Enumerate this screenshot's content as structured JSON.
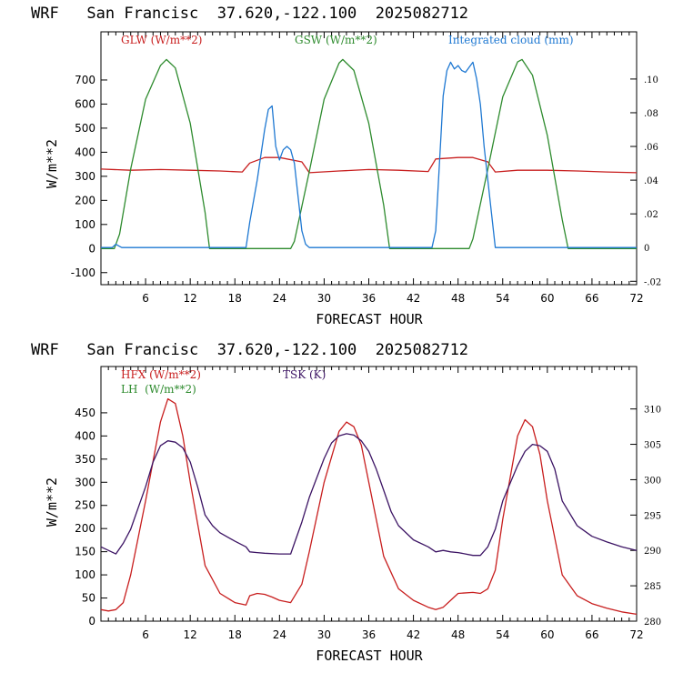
{
  "colors": {
    "red": "#c81e1e",
    "green": "#2e8b2e",
    "blue": "#1e78d2",
    "purple": "#3c1464"
  },
  "chart_data": [
    {
      "type": "line",
      "title": "WRF   San Francisc  37.620,-122.100  2025082712",
      "xlabel": "FORECAST HOUR",
      "ylabel": "W/m**2",
      "xlim": [
        0,
        72
      ],
      "ylim": [
        -150,
        900
      ],
      "y2lim": [
        -0.022,
        0.128
      ],
      "x_ticks": [
        6,
        12,
        18,
        24,
        30,
        36,
        42,
        48,
        54,
        60,
        66,
        72
      ],
      "y_ticks": [
        -100,
        0,
        100,
        200,
        300,
        400,
        500,
        600,
        700
      ],
      "y_tick_labels": [
        "-100",
        "0",
        "100",
        "200",
        "300",
        "400",
        "500",
        "600",
        "700"
      ],
      "y2_ticks": [
        -0.02,
        0,
        0.02,
        0.04,
        0.06,
        0.08,
        0.1
      ],
      "y2_tick_labels": [
        "-.02",
        "0",
        ".02",
        ".04",
        ".06",
        ".08",
        ".10"
      ],
      "series": [
        {
          "name": "GLW (W/m**2)",
          "color": "#c81e1e",
          "axis": "left",
          "x": [
            0,
            4,
            8,
            12,
            16,
            19,
            20,
            22,
            24,
            27,
            28,
            32,
            36,
            40,
            44,
            45,
            48,
            50,
            52,
            53,
            56,
            60,
            64,
            68,
            72
          ],
          "y": [
            330,
            325,
            328,
            325,
            322,
            318,
            355,
            378,
            378,
            360,
            315,
            322,
            328,
            325,
            320,
            372,
            378,
            378,
            360,
            318,
            325,
            325,
            322,
            318,
            315
          ]
        },
        {
          "name": "GSW (W/m**2)",
          "color": "#2e8b2e",
          "axis": "left",
          "x": [
            0,
            1.8,
            2.5,
            4,
            6,
            8,
            8.8,
            10,
            12,
            14,
            14.6,
            24,
            25.5,
            26,
            28,
            30,
            32,
            32.5,
            34,
            36,
            38,
            38.8,
            48,
            49.5,
            50,
            52,
            54,
            56,
            56.6,
            58,
            60,
            62,
            62.8,
            72
          ],
          "y": [
            0,
            0,
            60,
            330,
            620,
            760,
            785,
            750,
            520,
            150,
            0,
            0,
            0,
            30,
            320,
            620,
            770,
            785,
            740,
            520,
            180,
            0,
            0,
            0,
            40,
            330,
            630,
            775,
            785,
            720,
            470,
            120,
            0,
            0
          ]
        },
        {
          "name": "Integrated cloud (mm)",
          "color": "#1e78d2",
          "axis": "right",
          "x": [
            0,
            1.5,
            2,
            2.4,
            2.8,
            19.5,
            20,
            21,
            22,
            22.5,
            23,
            23.5,
            24,
            24.5,
            25,
            25.5,
            26,
            26.5,
            27,
            27.5,
            28,
            44.5,
            45,
            45.5,
            46,
            46.5,
            47,
            47.5,
            48,
            48.5,
            49,
            49.5,
            50,
            50.5,
            51,
            51.5,
            52,
            52.5,
            53,
            72
          ],
          "y": [
            0,
            0,
            0.002,
            0.001,
            0,
            0,
            0.015,
            0.04,
            0.07,
            0.082,
            0.084,
            0.06,
            0.052,
            0.058,
            0.06,
            0.058,
            0.05,
            0.03,
            0.01,
            0.002,
            0,
            0,
            0.01,
            0.05,
            0.09,
            0.105,
            0.11,
            0.106,
            0.108,
            0.105,
            0.104,
            0.107,
            0.11,
            0.1,
            0.085,
            0.06,
            0.04,
            0.02,
            0,
            0
          ]
        }
      ]
    },
    {
      "type": "line",
      "title": "WRF   San Francisc  37.620,-122.100  2025082712",
      "xlabel": "FORECAST HOUR",
      "ylabel": "W/m**2",
      "xlim": [
        0,
        72
      ],
      "ylim": [
        0,
        550
      ],
      "y2lim": [
        280,
        316
      ],
      "x_ticks": [
        6,
        12,
        18,
        24,
        30,
        36,
        42,
        48,
        54,
        60,
        66,
        72
      ],
      "y_ticks": [
        0,
        50,
        100,
        150,
        200,
        250,
        300,
        350,
        400,
        450
      ],
      "y_tick_labels": [
        "0",
        "50",
        "100",
        "150",
        "200",
        "250",
        "300",
        "350",
        "400",
        "450"
      ],
      "y2_ticks": [
        280,
        285,
        290,
        295,
        300,
        305,
        310
      ],
      "y2_tick_labels": [
        "280",
        "285",
        "290",
        "295",
        "300",
        "305",
        "310"
      ],
      "legend_lines": [
        {
          "text": "HFX (W/m**2)",
          "color": "#c81e1e"
        },
        {
          "text": "LH  (W/m**2)",
          "color": "#2e8b2e"
        },
        {
          "text": "TSK (K)",
          "color": "#3c1464"
        }
      ],
      "series": [
        {
          "name": "HFX (W/m**2)",
          "color": "#c81e1e",
          "axis": "left",
          "x": [
            0,
            1,
            2,
            3,
            4,
            6,
            8,
            9,
            10,
            11,
            12,
            14,
            16,
            18,
            19.5,
            20,
            21,
            22,
            23,
            24,
            25.5,
            27,
            28,
            30,
            32,
            33,
            34,
            35,
            36,
            38,
            40,
            42,
            44,
            45,
            46,
            47,
            48,
            50,
            51,
            52,
            53,
            54,
            56,
            57,
            58,
            59,
            60,
            62,
            64,
            66,
            68,
            70,
            72
          ],
          "y": [
            25,
            22,
            25,
            40,
            100,
            260,
            430,
            480,
            470,
            400,
            300,
            120,
            60,
            40,
            35,
            55,
            60,
            58,
            52,
            45,
            40,
            80,
            150,
            300,
            410,
            430,
            420,
            380,
            300,
            140,
            70,
            45,
            30,
            25,
            30,
            45,
            60,
            62,
            60,
            70,
            110,
            220,
            400,
            435,
            420,
            360,
            260,
            100,
            55,
            38,
            28,
            20,
            15
          ]
        },
        {
          "name": "TSK (K)",
          "color": "#3c1464",
          "axis": "right",
          "x": [
            0,
            1,
            2,
            3,
            4,
            6,
            7,
            8,
            9,
            10,
            11,
            12,
            13,
            14,
            15,
            16,
            18,
            19.5,
            20,
            21,
            22,
            24,
            25.5,
            26,
            27,
            28,
            30,
            31,
            32,
            33,
            34,
            35,
            36,
            37,
            38,
            39,
            40,
            42,
            44,
            45,
            46,
            47,
            48,
            49,
            50,
            51,
            52,
            53,
            54,
            56,
            57,
            58,
            59,
            60,
            61,
            62,
            64,
            66,
            68,
            70,
            72
          ],
          "y": [
            290.5,
            290,
            289.5,
            291,
            293,
            299,
            302.5,
            304.8,
            305.5,
            305.3,
            304.5,
            302.5,
            299,
            295,
            293.5,
            292.5,
            291.3,
            290.5,
            289.8,
            289.7,
            289.6,
            289.5,
            289.5,
            291,
            294,
            297.5,
            303,
            305.2,
            306.2,
            306.5,
            306.3,
            305.5,
            304,
            301.5,
            298.5,
            295.5,
            293.5,
            291.5,
            290.5,
            289.8,
            290,
            289.8,
            289.7,
            289.5,
            289.3,
            289.3,
            290.5,
            293,
            297,
            302,
            304,
            305,
            304.8,
            304,
            301.5,
            297,
            293.5,
            292,
            291.2,
            290.5,
            290
          ]
        }
      ]
    }
  ]
}
